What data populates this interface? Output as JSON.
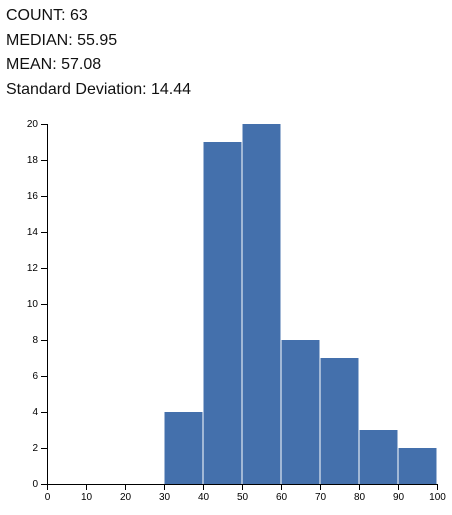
{
  "stats": {
    "count_label": "COUNT: 63",
    "median_label": "MEDIAN: 55.95",
    "mean_label": "MEAN: 57.08",
    "stddev_label": "Standard Deviation: 14.44"
  },
  "chart_data": {
    "type": "bar",
    "title": "",
    "xlabel": "",
    "ylabel": "",
    "bar_color": "#4470ac",
    "bins": [
      {
        "x0": 30,
        "x1": 40,
        "count": 4
      },
      {
        "x0": 40,
        "x1": 50,
        "count": 19
      },
      {
        "x0": 50,
        "x1": 60,
        "count": 20
      },
      {
        "x0": 60,
        "x1": 70,
        "count": 8
      },
      {
        "x0": 70,
        "x1": 80,
        "count": 7
      },
      {
        "x0": 80,
        "x1": 90,
        "count": 3
      },
      {
        "x0": 90,
        "x1": 100,
        "count": 2
      }
    ],
    "xlim": [
      0,
      100
    ],
    "ylim": [
      0,
      20
    ],
    "x_ticks": [
      0,
      10,
      20,
      30,
      40,
      50,
      60,
      70,
      80,
      90,
      100
    ],
    "y_ticks": [
      0,
      2,
      4,
      6,
      8,
      10,
      12,
      14,
      16,
      18,
      20
    ],
    "grid": false,
    "legend": "none"
  }
}
